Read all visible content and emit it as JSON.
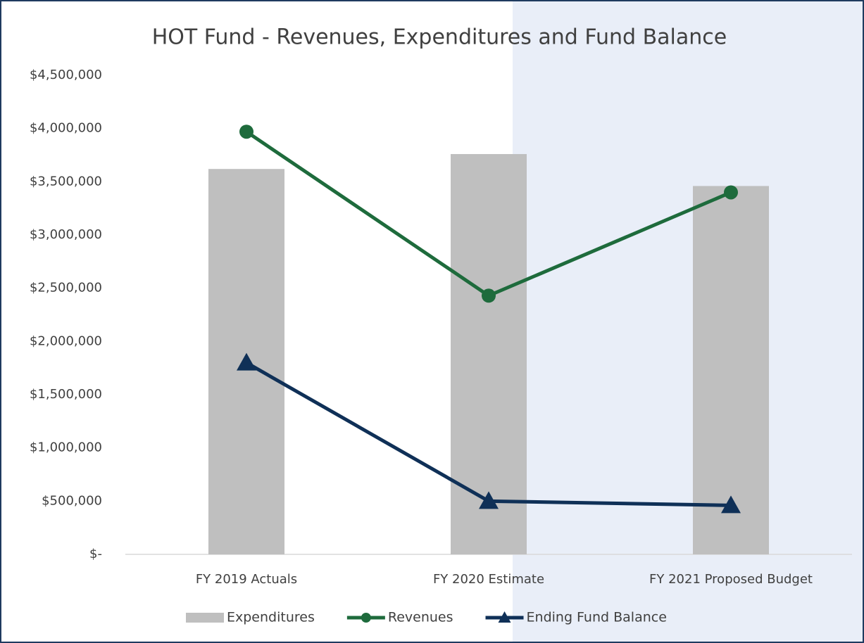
{
  "chart_data": {
    "type": "combo",
    "title": "HOT Fund - Revenues, Expenditures and Fund Balance",
    "categories": [
      "FY 2019 Actuals",
      "FY 2020 Estimate",
      "FY 2021 Proposed Budget"
    ],
    "series": [
      {
        "name": "Expenditures",
        "type": "bar",
        "color": "#bfbfbf",
        "values": [
          3620000,
          3760000,
          3460000
        ]
      },
      {
        "name": "Revenues",
        "type": "line",
        "marker": "circle",
        "color": "#1e6b3c",
        "values": [
          3970000,
          2430000,
          3400000
        ]
      },
      {
        "name": "Ending Fund Balance",
        "type": "line",
        "marker": "triangle",
        "color": "#0f3057",
        "values": [
          1800000,
          500000,
          460000
        ]
      }
    ],
    "ylim": [
      0,
      4500000
    ],
    "yticks": [
      {
        "value": 0,
        "label": "$-"
      },
      {
        "value": 500000,
        "label": "$500,000"
      },
      {
        "value": 1000000,
        "label": "$1,000,000"
      },
      {
        "value": 1500000,
        "label": "$1,500,000"
      },
      {
        "value": 2000000,
        "label": "$2,000,000"
      },
      {
        "value": 2500000,
        "label": "$2,500,000"
      },
      {
        "value": 3000000,
        "label": "$3,000,000"
      },
      {
        "value": 3500000,
        "label": "$3,500,000"
      },
      {
        "value": 4000000,
        "label": "$4,000,000"
      },
      {
        "value": 4500000,
        "label": "$4,500,000"
      }
    ],
    "legend": "bottom"
  }
}
